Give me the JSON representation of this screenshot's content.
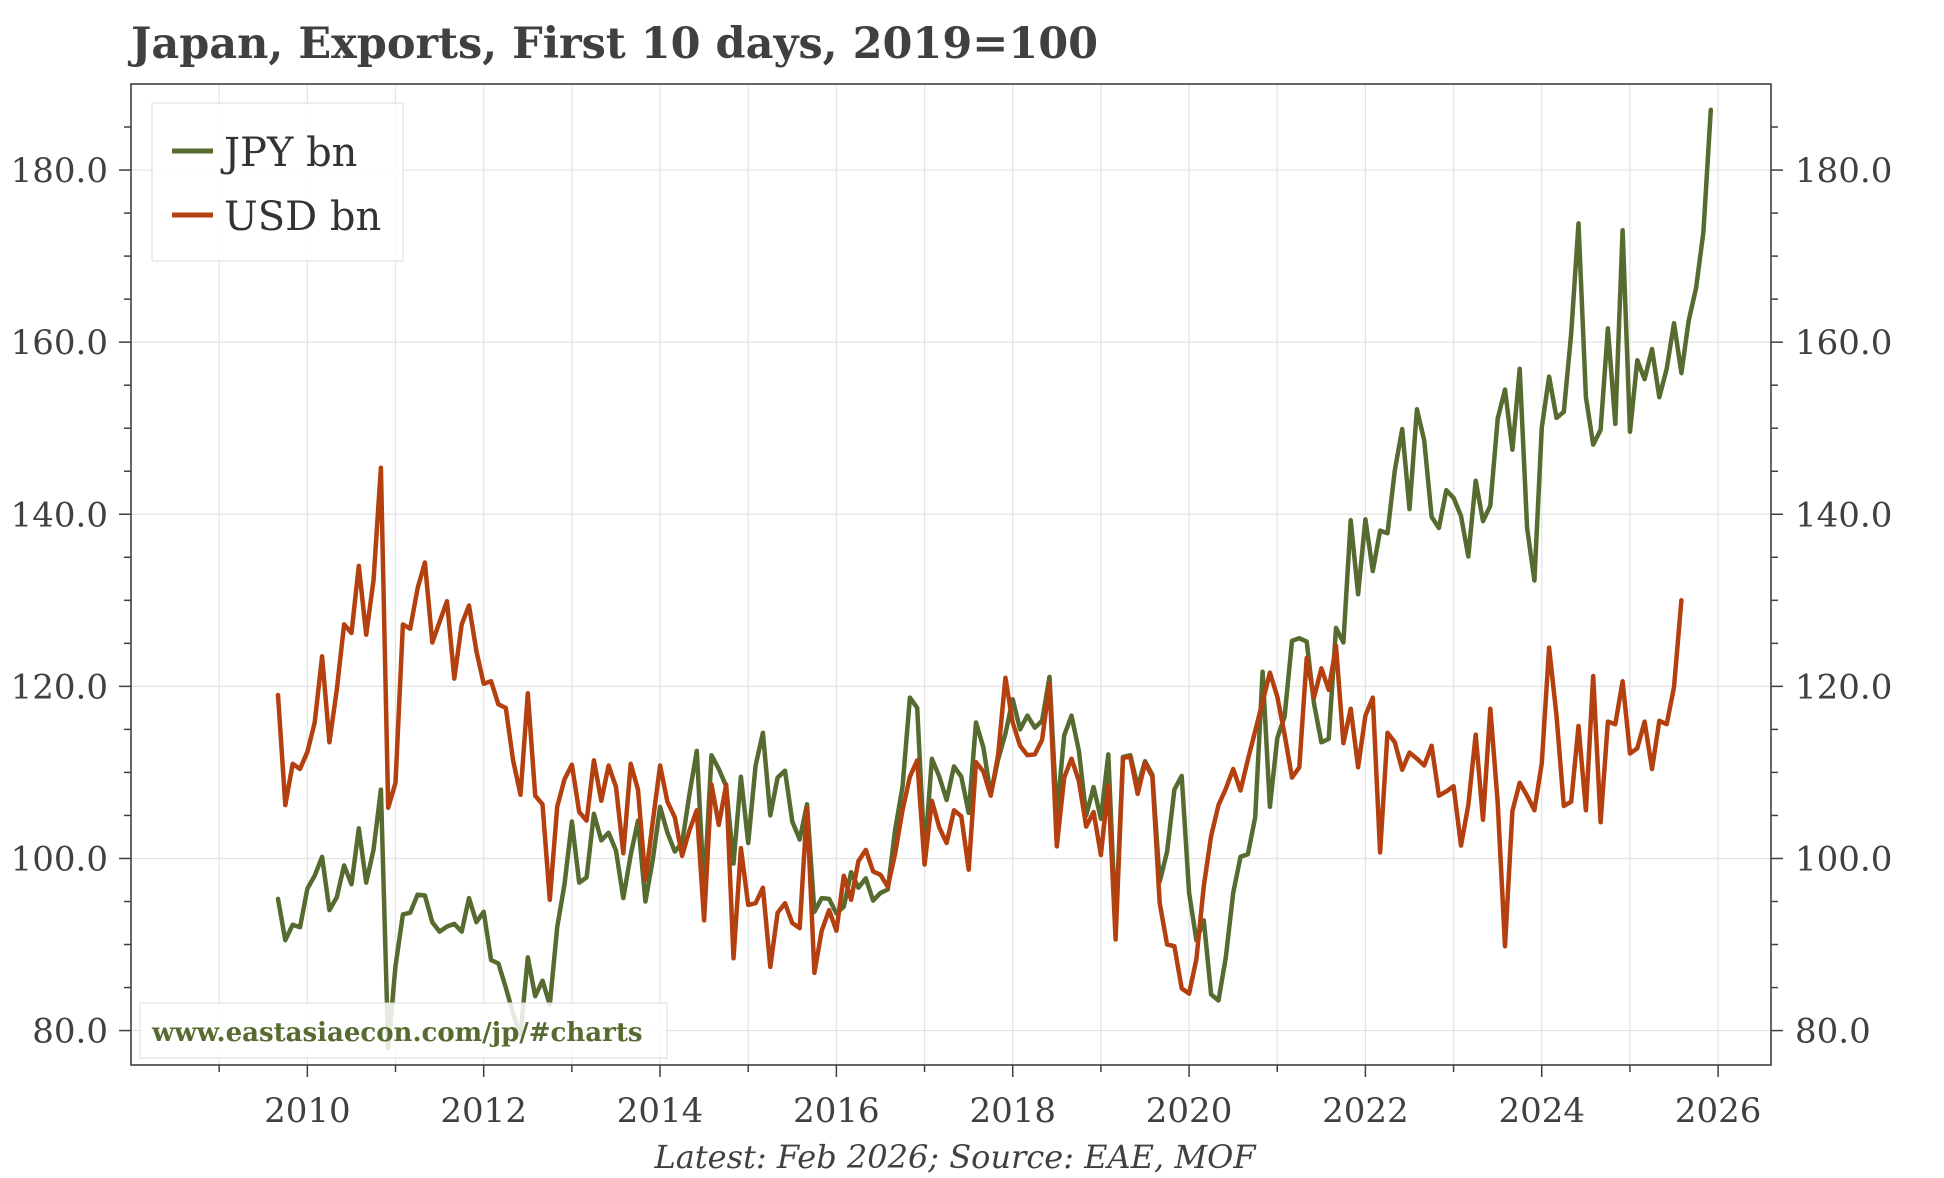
{
  "chart_data": {
    "type": "line",
    "title": "Japan, Exports, First 10 days, 2019=100",
    "footnote": "Latest: Feb 2026; Source: EAE, MOF",
    "watermark": "www.eastasiaecon.com/jp/#charts",
    "xlabel": "",
    "ylabel": "",
    "xlim": [
      2008.0,
      2026.6
    ],
    "ylim": [
      76.0,
      190.0
    ],
    "x_ticks": [
      "2010",
      "2012",
      "2014",
      "2016",
      "2018",
      "2020",
      "2022",
      "2024",
      "2026"
    ],
    "y_ticks": [
      "80.0",
      "100.0",
      "120.0",
      "140.0",
      "160.0",
      "180.0"
    ],
    "grid": true,
    "legend_position": "top-left",
    "colors": {
      "jpy": "#556b2f",
      "usd": "#b5400f",
      "text": "#404040",
      "grid": "#e3e3e3"
    },
    "series": [
      {
        "name": "JPY bn",
        "color": "#556b2f",
        "x_start": 2009.667,
        "x_step": 0.0833333,
        "values": [
          95.3,
          90.5,
          92.3,
          92.0,
          96.5,
          98.0,
          100.2,
          94.0,
          95.5,
          99.2,
          97.0,
          103.5,
          97.2,
          101.0,
          108.0,
          78.0,
          87.5,
          93.5,
          93.7,
          95.8,
          95.7,
          92.6,
          91.5,
          92.1,
          92.4,
          91.5,
          95.4,
          92.6,
          93.8,
          88.2,
          87.8,
          85.0,
          82.0,
          79.5,
          88.5,
          84.0,
          85.8,
          83.0,
          92.0,
          97.0,
          104.3,
          97.2,
          97.8,
          105.2,
          102.1,
          103.0,
          100.9,
          95.4,
          100.4,
          104.4,
          95.0,
          99.8,
          106.0,
          103.0,
          100.8,
          101.8,
          107.5,
          112.5,
          96.2,
          112.0,
          110.4,
          108.4,
          99.4,
          109.5,
          101.8,
          110.8,
          114.6,
          105.0,
          109.4,
          110.2,
          104.3,
          102.2,
          106.3,
          93.8,
          95.4,
          95.3,
          93.6,
          94.4,
          98.4,
          96.6,
          97.7,
          95.1,
          96.0,
          96.4,
          103.4,
          108.3,
          118.7,
          117.5,
          100.3,
          111.6,
          109.5,
          106.8,
          110.7,
          109.5,
          105.3,
          115.8,
          112.9,
          107.4,
          111.5,
          114.5,
          118.5,
          115.0,
          116.6,
          115.2,
          116.0,
          121.1,
          105.0,
          114.3,
          116.6,
          112.5,
          105.0,
          108.3,
          104.6,
          112.1,
          92.3,
          111.8,
          112.0,
          108.3,
          111.3,
          109.7,
          97.3,
          100.8,
          108.0,
          109.6,
          96.0,
          90.5,
          92.8,
          84.2,
          83.5,
          88.5,
          96.0,
          100.2,
          100.5,
          104.8,
          121.7,
          106.0,
          114.0,
          116.5,
          125.3,
          125.6,
          125.2,
          118.0,
          113.5,
          113.9,
          126.8,
          125.1,
          139.3,
          130.7,
          139.4,
          133.4,
          138.1,
          137.8,
          145.1,
          149.9,
          140.6,
          152.2,
          148.6,
          139.7,
          138.4,
          142.8,
          141.9,
          139.8,
          135.1,
          143.9,
          139.2,
          141.0,
          151.1,
          154.5,
          147.5,
          156.9,
          138.4,
          132.3,
          150.1,
          156.0,
          151.2,
          151.9,
          161.0,
          173.8,
          153.6,
          148.1,
          149.8,
          161.6,
          150.5,
          173.0,
          149.6,
          157.9,
          155.7,
          159.2,
          153.6,
          156.9,
          162.2,
          156.4,
          162.5,
          166.3,
          172.8,
          187.0
        ]
      },
      {
        "name": "USD bn",
        "color": "#b5400f",
        "x_start": 2009.667,
        "x_step": 0.0833333,
        "values": [
          119.0,
          106.2,
          111.0,
          110.4,
          112.4,
          115.8,
          123.5,
          113.5,
          119.6,
          127.2,
          126.2,
          134.0,
          126.0,
          132.3,
          145.4,
          105.9,
          108.8,
          127.2,
          126.7,
          131.4,
          134.4,
          125.1,
          127.5,
          129.9,
          120.9,
          127.2,
          129.4,
          124.1,
          120.3,
          120.6,
          117.9,
          117.5,
          111.4,
          107.4,
          119.2,
          107.3,
          106.3,
          95.2,
          106.0,
          109.2,
          110.9,
          105.4,
          104.4,
          111.4,
          106.7,
          110.8,
          108.3,
          100.6,
          111.0,
          108.0,
          97.5,
          104.2,
          110.8,
          106.6,
          104.8,
          100.3,
          103.3,
          105.6,
          92.8,
          108.6,
          103.9,
          108.6,
          88.4,
          101.2,
          94.6,
          94.8,
          96.6,
          87.4,
          93.7,
          94.8,
          92.5,
          91.9,
          105.9,
          86.7,
          91.6,
          94.0,
          91.6,
          98.0,
          95.2,
          99.7,
          101.0,
          98.5,
          98.1,
          96.7,
          100.6,
          105.6,
          109.5,
          111.4,
          99.3,
          106.7,
          103.6,
          101.8,
          105.6,
          104.9,
          98.7,
          111.2,
          110.1,
          107.3,
          112.0,
          121.0,
          115.8,
          113.1,
          112.0,
          112.1,
          113.8,
          120.3,
          101.4,
          109.4,
          111.6,
          109.0,
          103.7,
          105.4,
          100.4,
          108.5,
          90.6,
          111.7,
          111.8,
          107.5,
          111.1,
          109.5,
          94.8,
          90.0,
          89.8,
          84.9,
          84.3,
          88.3,
          96.8,
          102.6,
          106.2,
          108.1,
          110.4,
          107.9,
          111.5,
          114.8,
          118.2,
          121.6,
          118.8,
          114.4,
          109.4,
          110.6,
          123.3,
          118.7,
          122.1,
          119.6,
          124.7,
          113.4,
          117.4,
          110.6,
          116.6,
          118.7,
          100.7,
          114.6,
          113.5,
          110.3,
          112.3,
          111.6,
          110.8,
          113.1,
          107.3,
          107.8,
          108.4,
          101.5,
          106.2,
          114.4,
          104.5,
          117.4,
          106.5,
          89.8,
          105.5,
          108.8,
          107.3,
          105.6,
          111.1,
          124.5,
          116.6,
          106.1,
          106.6,
          115.4,
          105.6,
          121.2,
          104.2,
          115.9,
          115.6,
          120.6,
          112.2,
          112.8,
          115.9,
          110.4,
          116.0,
          115.6,
          119.9,
          130.0
        ]
      }
    ]
  }
}
